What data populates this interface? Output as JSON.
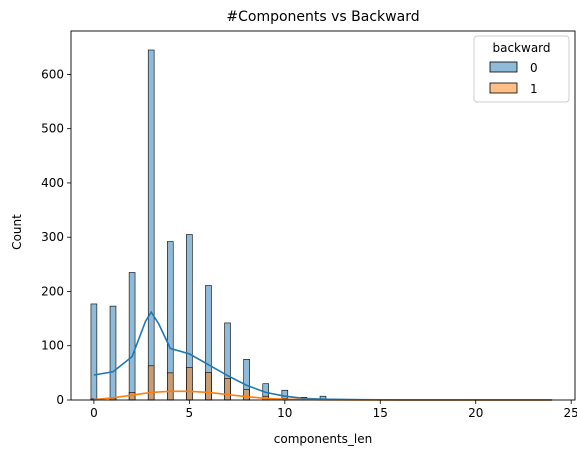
{
  "chart_data": {
    "type": "bar",
    "title": "#Components vs Backward",
    "xlabel": "components_len",
    "ylabel": "Count",
    "xlim": [
      -1.2,
      25.2
    ],
    "ylim": [
      0,
      680
    ],
    "xticks": [
      0,
      5,
      10,
      15,
      20,
      25
    ],
    "yticks": [
      0,
      100,
      200,
      300,
      400,
      500,
      600
    ],
    "grid": false,
    "legend": {
      "title": "backward",
      "placement": "top-right"
    },
    "colors": {
      "series0": "#1f77b4",
      "series1": "#ff7f0e"
    },
    "x": [
      0,
      1,
      2,
      3,
      4,
      5,
      6,
      7,
      8,
      9,
      10,
      11,
      12
    ],
    "series": [
      {
        "name": "0",
        "values": [
          177,
          173,
          235,
          645,
          292,
          305,
          211,
          142,
          75,
          30,
          18,
          5,
          7
        ],
        "kde": [
          [
            0,
            46
          ],
          [
            1,
            52
          ],
          [
            2,
            80
          ],
          [
            2.7,
            145
          ],
          [
            3,
            162
          ],
          [
            3.4,
            140
          ],
          [
            4,
            95
          ],
          [
            5,
            85
          ],
          [
            6,
            65
          ],
          [
            7,
            45
          ],
          [
            8,
            27
          ],
          [
            9,
            14
          ],
          [
            10,
            7
          ],
          [
            11,
            3
          ],
          [
            12,
            1.5
          ],
          [
            14,
            0.5
          ],
          [
            16,
            0.2
          ],
          [
            18,
            0.1
          ],
          [
            20,
            0.1
          ],
          [
            22,
            0.1
          ],
          [
            24,
            0.1
          ]
        ]
      },
      {
        "name": "1",
        "values": [
          2,
          3,
          14,
          63,
          50,
          60,
          51,
          40,
          19,
          7,
          3,
          1,
          1
        ],
        "kde": [
          [
            0,
            1
          ],
          [
            1,
            4
          ],
          [
            2,
            9
          ],
          [
            3,
            14
          ],
          [
            4,
            16
          ],
          [
            5,
            16
          ],
          [
            6,
            14
          ],
          [
            7,
            10
          ],
          [
            8,
            6
          ],
          [
            9,
            3
          ],
          [
            10,
            1.5
          ],
          [
            11,
            0.7
          ],
          [
            12,
            0.3
          ],
          [
            14,
            0.1
          ],
          [
            16,
            0.05
          ],
          [
            18,
            0.05
          ],
          [
            20,
            0.05
          ],
          [
            22,
            0.05
          ],
          [
            24,
            0.05
          ]
        ]
      }
    ]
  }
}
